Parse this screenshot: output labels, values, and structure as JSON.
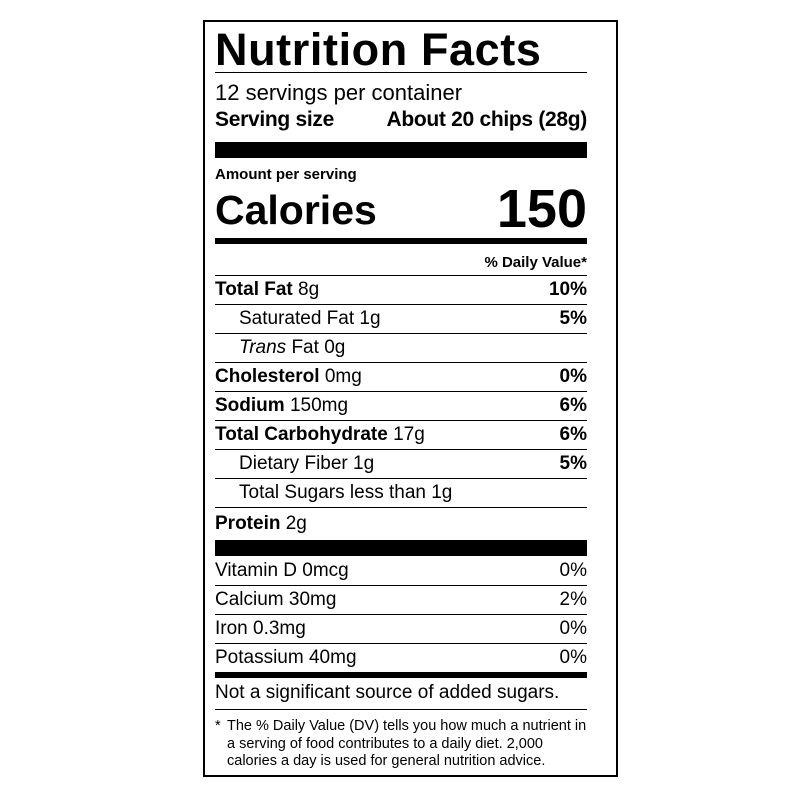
{
  "title": "Nutrition Facts",
  "servings_per_container": "12 servings per container",
  "serving_size": {
    "label": "Serving size",
    "value": "About 20 chips (28g)"
  },
  "amount_per_serving": "Amount per serving",
  "calories": {
    "label": "Calories",
    "value": "150"
  },
  "daily_value_header": "% Daily Value*",
  "nutrients": [
    {
      "name": "Total Fat",
      "amount": "8g",
      "dv": "10%",
      "bold": true
    },
    {
      "name": "Saturated Fat",
      "amount": "1g",
      "dv": "5%"
    },
    {
      "name": "Trans",
      "name_suffix": "Fat",
      "amount": "0g",
      "dv": ""
    },
    {
      "name": "Cholesterol",
      "amount": "0mg",
      "dv": "0%",
      "bold": true
    },
    {
      "name": "Sodium",
      "amount": "150mg",
      "dv": "6%",
      "bold": true
    },
    {
      "name": "Total Carbohydrate",
      "amount": "17g",
      "dv": "6%",
      "bold": true
    },
    {
      "name": "Dietary Fiber",
      "amount": "1g",
      "dv": "5%"
    },
    {
      "name": "Total Sugars",
      "amount": "less than 1g",
      "dv": ""
    },
    {
      "name": "Protein",
      "amount": "2g",
      "dv": "",
      "bold": true
    }
  ],
  "micronutrients": [
    {
      "text": "Vitamin D 0mcg",
      "dv": "0%"
    },
    {
      "text": "Calcium 30mg",
      "dv": "2%"
    },
    {
      "text": "Iron 0.3mg",
      "dv": "0%"
    },
    {
      "text": "Potassium 40mg",
      "dv": "0%"
    }
  ],
  "added_sugars_note": "Not a significant source of added sugars.",
  "footnote": {
    "marker": "*",
    "text": "The % Daily Value (DV) tells you how much a nutrient in a serving of food contributes to a daily diet. 2,000 calories a day is used for general nutrition advice."
  }
}
